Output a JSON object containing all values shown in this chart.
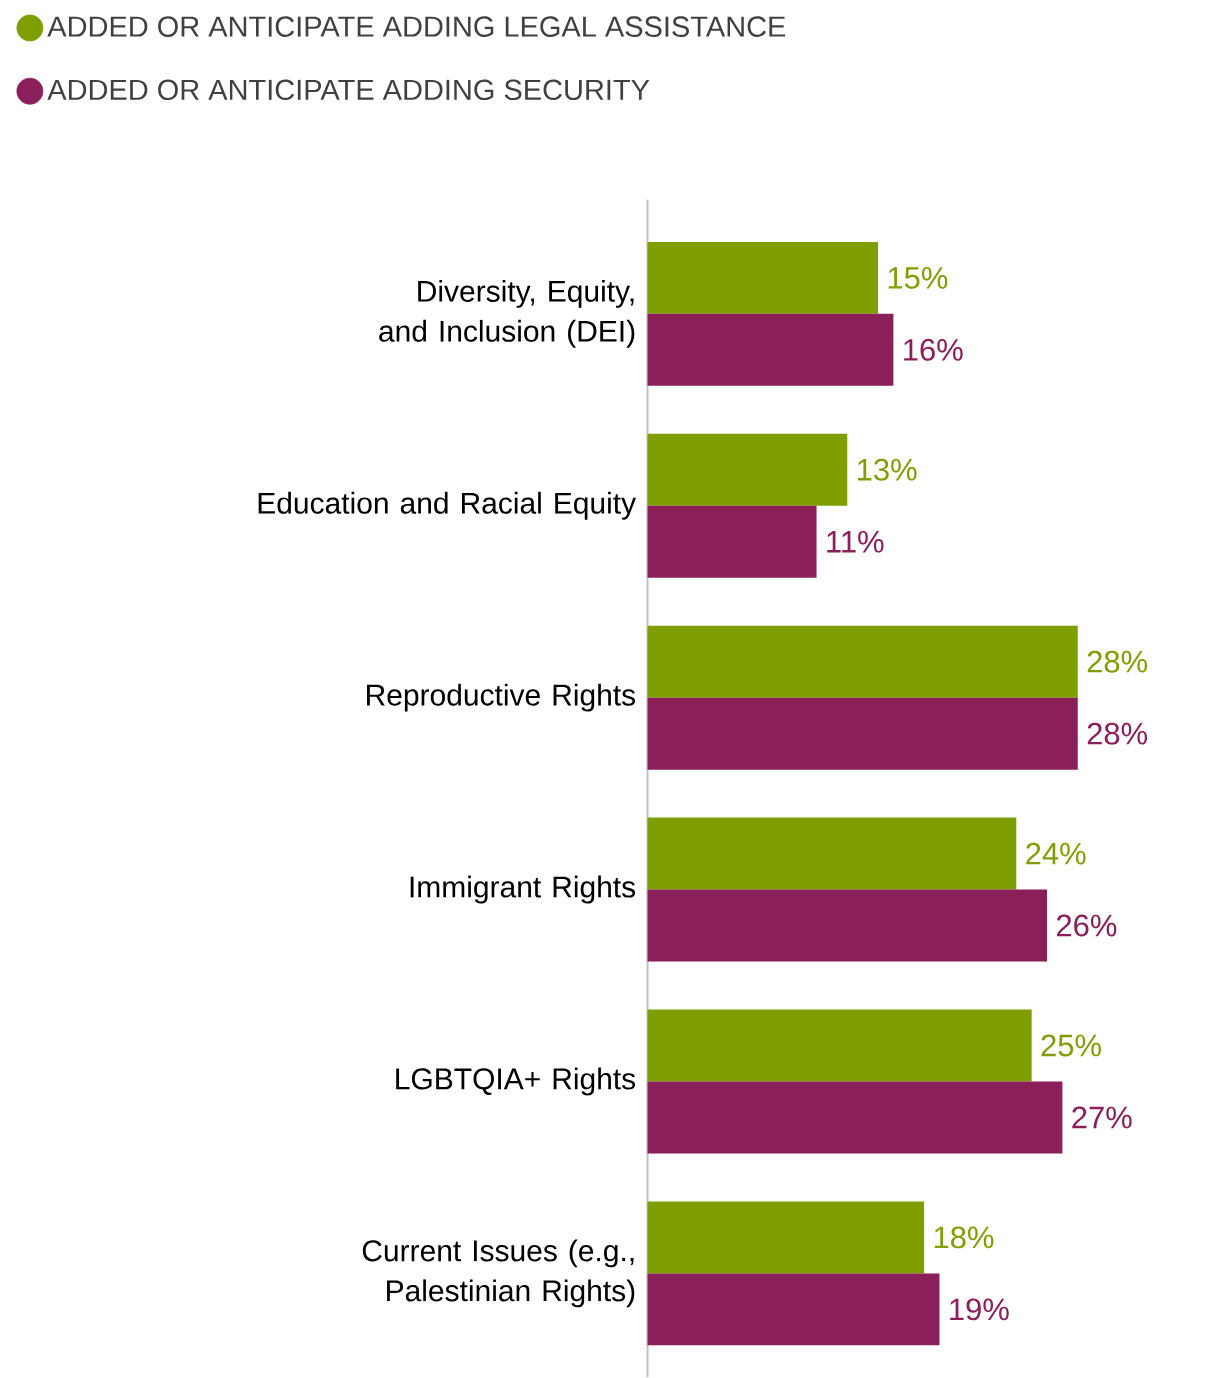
{
  "chart_data": {
    "type": "bar",
    "orientation": "horizontal",
    "legend": "top left",
    "marker": "circle",
    "categories": [
      "Diversity, Equity, and Inclusion (DEI)",
      "Education and Racial Equity",
      "Reproductive Rights",
      "Immigrant Rights",
      "LGBTQIA+ Rights",
      "Current Issues (e.g., Palestinian Rights)"
    ],
    "series": [
      {
        "name": "ADDED OR ANTICIPATE ADDING LEGAL ASSISTANCE",
        "color": "#7f9f00",
        "values": [
          15,
          13,
          28,
          24,
          25,
          18
        ],
        "value_labels": [
          "15%",
          "13%",
          "28%",
          "24%",
          "25%",
          "18%"
        ]
      },
      {
        "name": "ADDED OR ANTICIPATE ADDING SECURITY",
        "color": "#8b1f5a",
        "values": [
          16,
          11,
          28,
          26,
          27,
          19
        ],
        "value_labels": [
          "16%",
          "11%",
          "28%",
          "26%",
          "27%",
          "19%"
        ]
      }
    ]
  }
}
